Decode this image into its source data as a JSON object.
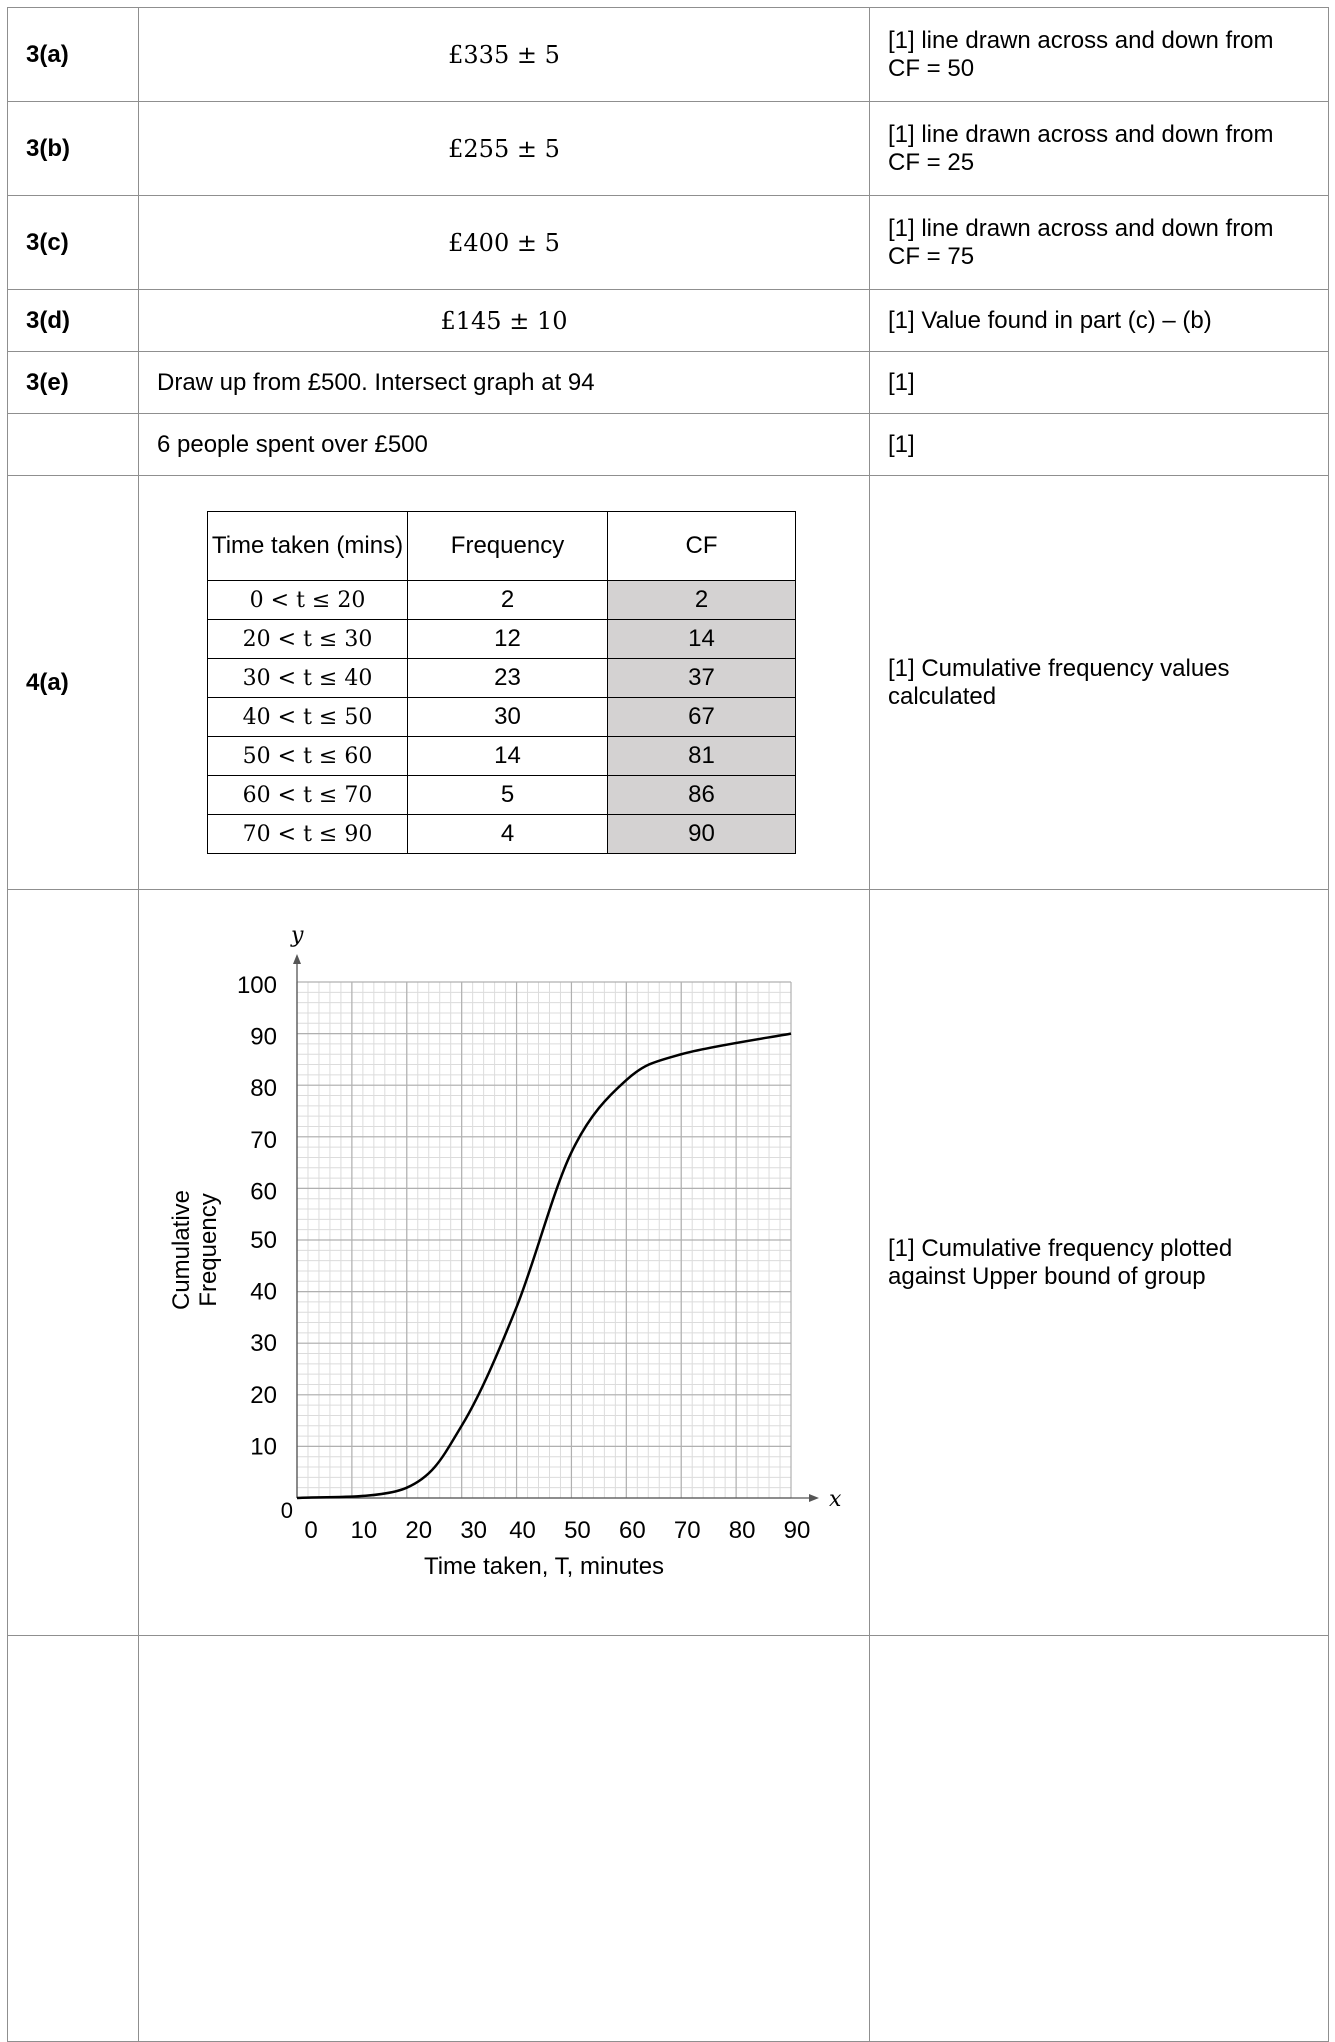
{
  "rows": [
    {
      "q": "3(a)",
      "answer": "£335 ± 5",
      "mark": "[1] line drawn across and down from CF = 50"
    },
    {
      "q": "3(b)",
      "answer": "£255 ± 5",
      "mark": "[1] line drawn across and down from CF = 25"
    },
    {
      "q": "3(c)",
      "answer": "£400 ± 5",
      "mark": "[1] line drawn across and down from CF = 75"
    },
    {
      "q": "3(d)",
      "answer": "£145 ± 10",
      "mark": "[1] Value found in part (c) – (b)"
    },
    {
      "q": "3(e)",
      "answer": "Draw up from £500. Intersect graph at 94",
      "mark": "[1]"
    },
    {
      "q": "",
      "answer": "6 people spent over £500",
      "mark": "[1]"
    }
  ],
  "q4a": {
    "q": "4(a)",
    "mark": "[1] Cumulative frequency values calculated",
    "table": {
      "headers": [
        "Time taken (mins)",
        "Frequency",
        "CF"
      ],
      "rows": [
        [
          "0 < t ≤ 20",
          "2",
          "2"
        ],
        [
          "20 < t ≤ 30",
          "12",
          "14"
        ],
        [
          "30 < t ≤ 40",
          "23",
          "37"
        ],
        [
          "40 < t ≤ 50",
          "30",
          "67"
        ],
        [
          "50 < t ≤ 60",
          "14",
          "81"
        ],
        [
          "60 < t ≤ 70",
          "5",
          "86"
        ],
        [
          "70 < t ≤ 90",
          "4",
          "90"
        ]
      ]
    }
  },
  "q4b": {
    "mark": "[1] Cumulative frequency plotted against Upper bound of group"
  },
  "chart_data": {
    "type": "line",
    "xlabel": "Time taken, T, minutes",
    "ylabel": "Cumulative Frequency",
    "x_axis_letter": "x",
    "y_axis_letter": "y",
    "origin_label": "0",
    "xlim": [
      0,
      90
    ],
    "ylim": [
      0,
      100
    ],
    "x_ticks": [
      "0",
      "10",
      "20",
      "30",
      "40",
      "50",
      "60",
      "70",
      "80",
      "90"
    ],
    "y_ticks": [
      "10",
      "20",
      "30",
      "40",
      "50",
      "60",
      "70",
      "80",
      "90",
      "100"
    ],
    "grid": true,
    "series": [
      {
        "x": [
          0,
          20,
          30,
          40,
          50,
          60,
          70,
          90
        ],
        "values": [
          0,
          2,
          14,
          37,
          67,
          81,
          86,
          90
        ]
      }
    ],
    "colors": {
      "grid_major": "#b0b0b0",
      "grid_minor": "#dcdcdc",
      "curve": "#000000"
    }
  }
}
